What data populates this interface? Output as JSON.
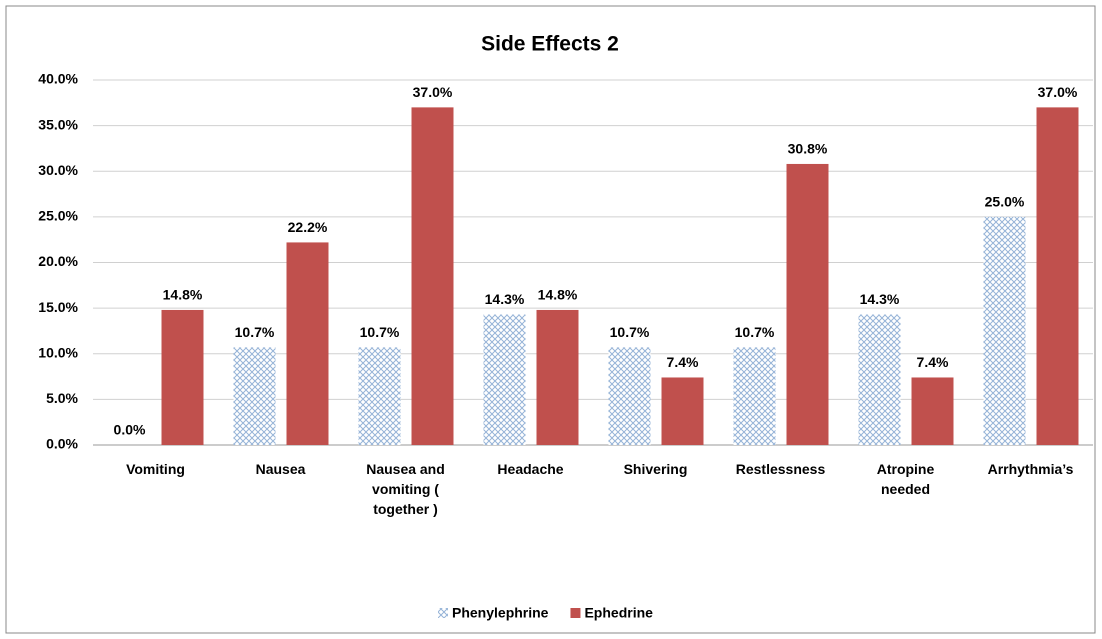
{
  "chart_data": {
    "type": "bar",
    "title": "Side Effects 2",
    "categories": [
      "Vomiting",
      "Nausea",
      "Nausea and vomiting ( together )",
      "Headache",
      "Shivering",
      "Restlessness",
      "Atropine needed",
      "Arrhythmia’s"
    ],
    "series": [
      {
        "name": "Phenylephrine",
        "color": "#95b3d7",
        "pattern": "crosshatch",
        "values": [
          0,
          10.7,
          10.7,
          14.3,
          10.7,
          10.7,
          14.3,
          25
        ],
        "value_labels": [
          "0.0%",
          "10.7%",
          "10.7%",
          "14.3%",
          "10.7%",
          "10.7%",
          "14.3%",
          "25.0%"
        ]
      },
      {
        "name": "Ephedrine",
        "color": "#c0504d",
        "values": [
          14.8,
          22.2,
          37,
          14.8,
          7.4,
          30.8,
          7.4,
          37
        ],
        "value_labels": [
          "14.8%",
          "22.2%",
          "37.0%",
          "14.8%",
          "7.4%",
          "30.8%",
          "7.4%",
          "37.0%"
        ]
      }
    ],
    "ylim": [
      0,
      40
    ],
    "yticks": [
      {
        "value": 0,
        "label": "0.0%"
      },
      {
        "value": 5,
        "label": "5.0%"
      },
      {
        "value": 10,
        "label": "10.0%"
      },
      {
        "value": 15,
        "label": "15.0%"
      },
      {
        "value": 20,
        "label": "20.0%"
      },
      {
        "value": 25,
        "label": "25.0%"
      },
      {
        "value": 30,
        "label": "30.0%"
      },
      {
        "value": 35,
        "label": "35.0%"
      },
      {
        "value": 40,
        "label": "40.0%"
      }
    ],
    "grid": true,
    "legend": "bottom"
  }
}
